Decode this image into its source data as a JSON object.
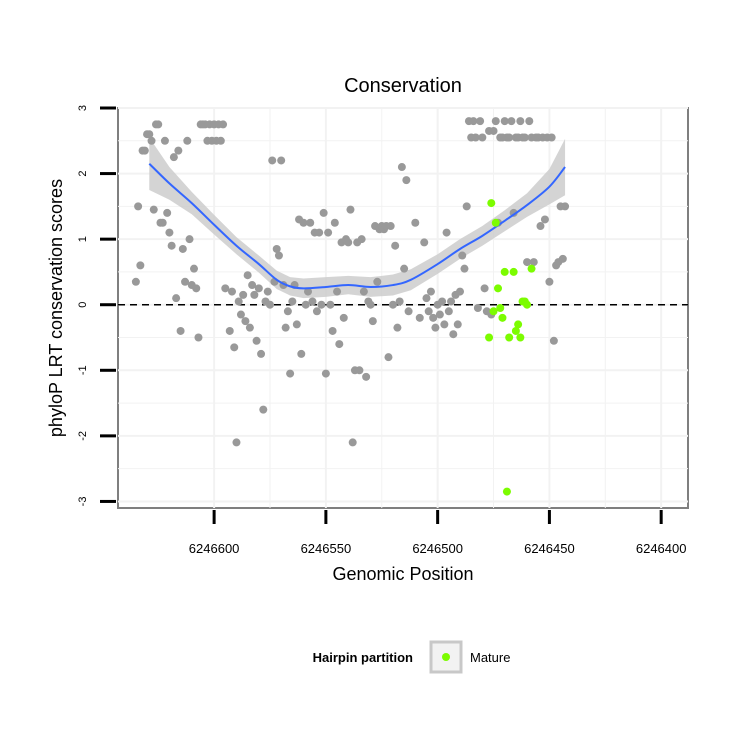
{
  "chart_data": {
    "type": "scatter",
    "title": "Conservation",
    "xlabel": "Genomic Position",
    "ylabel": "phyloP LRT conservation scores",
    "x_reversed": true,
    "xlim": [
      6246643,
      6246388
    ],
    "ylim": [
      -3.1,
      3.0
    ],
    "x_ticks": [
      6246600,
      6246550,
      6246500,
      6246450,
      6246400
    ],
    "x_tick_labels": [
      "6246600",
      "6246550",
      "6246500",
      "6246450",
      "6246400"
    ],
    "y_ticks": [
      -3,
      -2,
      -1,
      0,
      1,
      2,
      3
    ],
    "y_tick_labels": [
      "-3",
      "-2",
      "-1",
      "0",
      "1",
      "2",
      "3"
    ],
    "grid": true,
    "reference_line": {
      "y": 0,
      "style": "dashed"
    },
    "legend": {
      "title": "Hairpin partition",
      "position": "bottom",
      "entries": [
        {
          "label": "Mature",
          "color": "#7cfc00"
        }
      ]
    },
    "colors": {
      "other": "#999999",
      "mature": "#7cfc00",
      "smooth": "#3366ff",
      "band": "#cccccc",
      "panel_border": "#7f7f7f",
      "grid": "#f2f2f2"
    },
    "series": [
      {
        "group": "other",
        "points": [
          [
            6246635,
            0.35
          ],
          [
            6246634,
            1.5
          ],
          [
            6246633,
            0.6
          ],
          [
            6246632,
            2.35
          ],
          [
            6246631,
            2.35
          ],
          [
            6246630,
            2.6
          ],
          [
            6246629,
            2.6
          ],
          [
            6246628,
            2.5
          ],
          [
            6246627,
            1.45
          ],
          [
            6246626,
            2.75
          ],
          [
            6246625,
            2.75
          ],
          [
            6246624,
            1.25
          ],
          [
            6246623,
            1.25
          ],
          [
            6246622,
            2.5
          ],
          [
            6246621,
            1.4
          ],
          [
            6246620,
            1.1
          ],
          [
            6246619,
            0.9
          ],
          [
            6246618,
            2.25
          ],
          [
            6246617,
            0.1
          ],
          [
            6246616,
            2.35
          ],
          [
            6246615,
            -0.4
          ],
          [
            6246614,
            0.85
          ],
          [
            6246613,
            0.35
          ],
          [
            6246612,
            2.5
          ],
          [
            6246611,
            1.0
          ],
          [
            6246610,
            0.3
          ],
          [
            6246609,
            0.55
          ],
          [
            6246608,
            0.25
          ],
          [
            6246607,
            -0.5
          ],
          [
            6246606,
            2.75
          ],
          [
            6246605,
            2.75
          ],
          [
            6246604,
            2.75
          ],
          [
            6246603,
            2.5
          ],
          [
            6246602,
            2.75
          ],
          [
            6246601,
            2.5
          ],
          [
            6246600,
            2.75
          ],
          [
            6246599,
            2.5
          ],
          [
            6246598,
            2.75
          ],
          [
            6246597,
            2.5
          ],
          [
            6246596,
            2.75
          ],
          [
            6246595,
            0.25
          ],
          [
            6246593,
            -0.4
          ],
          [
            6246592,
            0.2
          ],
          [
            6246591,
            -0.65
          ],
          [
            6246590,
            -2.1
          ],
          [
            6246589,
            0.05
          ],
          [
            6246588,
            -0.15
          ],
          [
            6246587,
            0.15
          ],
          [
            6246586,
            -0.25
          ],
          [
            6246585,
            0.45
          ],
          [
            6246584,
            -0.35
          ],
          [
            6246583,
            0.3
          ],
          [
            6246582,
            0.15
          ],
          [
            6246581,
            -0.55
          ],
          [
            6246580,
            0.25
          ],
          [
            6246579,
            -0.75
          ],
          [
            6246578,
            -1.6
          ],
          [
            6246577,
            0.05
          ],
          [
            6246576,
            0.2
          ],
          [
            6246575,
            0.0
          ],
          [
            6246574,
            2.2
          ],
          [
            6246573,
            0.35
          ],
          [
            6246572,
            0.85
          ],
          [
            6246571,
            0.75
          ],
          [
            6246570,
            2.2
          ],
          [
            6246569,
            0.3
          ],
          [
            6246568,
            -0.35
          ],
          [
            6246567,
            -0.1
          ],
          [
            6246566,
            -1.05
          ],
          [
            6246565,
            0.05
          ],
          [
            6246564,
            0.3
          ],
          [
            6246563,
            -0.3
          ],
          [
            6246562,
            1.3
          ],
          [
            6246561,
            -0.75
          ],
          [
            6246560,
            1.25
          ],
          [
            6246559,
            0.0
          ],
          [
            6246558,
            0.2
          ],
          [
            6246557,
            1.25
          ],
          [
            6246556,
            0.05
          ],
          [
            6246555,
            1.1
          ],
          [
            6246554,
            -0.1
          ],
          [
            6246553,
            1.1
          ],
          [
            6246552,
            0.0
          ],
          [
            6246551,
            1.4
          ],
          [
            6246550,
            -1.05
          ],
          [
            6246549,
            1.1
          ],
          [
            6246548,
            0.0
          ],
          [
            6246547,
            -0.4
          ],
          [
            6246546,
            1.25
          ],
          [
            6246545,
            0.2
          ],
          [
            6246544,
            -0.6
          ],
          [
            6246543,
            0.95
          ],
          [
            6246542,
            -0.2
          ],
          [
            6246541,
            1.0
          ],
          [
            6246540,
            0.95
          ],
          [
            6246539,
            1.45
          ],
          [
            6246538,
            -2.1
          ],
          [
            6246537,
            -1.0
          ],
          [
            6246536,
            0.95
          ],
          [
            6246535,
            -1.0
          ],
          [
            6246534,
            1.0
          ],
          [
            6246533,
            0.2
          ],
          [
            6246532,
            -1.1
          ],
          [
            6246531,
            0.05
          ],
          [
            6246530,
            0.0
          ],
          [
            6246529,
            -0.25
          ],
          [
            6246528,
            1.2
          ],
          [
            6246527,
            0.35
          ],
          [
            6246526,
            1.15
          ],
          [
            6246525,
            1.2
          ],
          [
            6246524,
            1.15
          ],
          [
            6246523,
            1.2
          ],
          [
            6246522,
            -0.8
          ],
          [
            6246521,
            1.2
          ],
          [
            6246520,
            0.0
          ],
          [
            6246519,
            0.9
          ],
          [
            6246518,
            -0.35
          ],
          [
            6246517,
            0.05
          ],
          [
            6246516,
            2.1
          ],
          [
            6246515,
            0.55
          ],
          [
            6246514,
            1.9
          ],
          [
            6246513,
            -0.1
          ],
          [
            6246510,
            1.25
          ],
          [
            6246508,
            -0.2
          ],
          [
            6246506,
            0.95
          ],
          [
            6246505,
            0.1
          ],
          [
            6246504,
            -0.1
          ],
          [
            6246503,
            0.2
          ],
          [
            6246502,
            -0.2
          ],
          [
            6246501,
            -0.35
          ],
          [
            6246500,
            0.0
          ],
          [
            6246499,
            -0.15
          ],
          [
            6246498,
            0.05
          ],
          [
            6246497,
            -0.3
          ],
          [
            6246496,
            1.1
          ],
          [
            6246495,
            -0.1
          ],
          [
            6246494,
            0.05
          ],
          [
            6246493,
            -0.45
          ],
          [
            6246492,
            0.15
          ],
          [
            6246491,
            -0.3
          ],
          [
            6246490,
            0.2
          ],
          [
            6246489,
            0.75
          ],
          [
            6246488,
            0.55
          ],
          [
            6246487,
            1.5
          ],
          [
            6246486,
            2.8
          ],
          [
            6246485,
            2.55
          ],
          [
            6246484,
            2.8
          ],
          [
            6246483,
            2.55
          ],
          [
            6246482,
            -0.05
          ],
          [
            6246481,
            2.8
          ],
          [
            6246480,
            2.55
          ],
          [
            6246479,
            0.25
          ],
          [
            6246478,
            -0.1
          ],
          [
            6246477,
            2.65
          ],
          [
            6246476,
            -0.15
          ],
          [
            6246475,
            2.65
          ],
          [
            6246474,
            2.8
          ],
          [
            6246473,
            1.25
          ],
          [
            6246472,
            2.55
          ],
          [
            6246471,
            2.55
          ],
          [
            6246470,
            2.8
          ],
          [
            6246469,
            2.55
          ],
          [
            6246468,
            2.55
          ],
          [
            6246467,
            2.8
          ],
          [
            6246466,
            1.4
          ],
          [
            6246465,
            2.55
          ],
          [
            6246464,
            2.55
          ],
          [
            6246463,
            2.8
          ],
          [
            6246462,
            2.55
          ],
          [
            6246461,
            2.55
          ],
          [
            6246460,
            0.65
          ],
          [
            6246459,
            2.8
          ],
          [
            6246458,
            2.55
          ],
          [
            6246457,
            0.65
          ],
          [
            6246456,
            2.55
          ],
          [
            6246455,
            2.55
          ],
          [
            6246454,
            1.2
          ],
          [
            6246453,
            2.55
          ],
          [
            6246452,
            1.3
          ],
          [
            6246451,
            2.55
          ],
          [
            6246450,
            0.35
          ],
          [
            6246449,
            2.55
          ],
          [
            6246448,
            -0.55
          ],
          [
            6246447,
            0.6
          ],
          [
            6246446,
            0.65
          ],
          [
            6246445,
            1.5
          ],
          [
            6246444,
            0.7
          ],
          [
            6246443,
            1.5
          ]
        ]
      },
      {
        "group": "mature",
        "points": [
          [
            6246476,
            1.55
          ],
          [
            6246474,
            1.25
          ],
          [
            6246473,
            0.25
          ],
          [
            6246472,
            -0.05
          ],
          [
            6246470,
            0.5
          ],
          [
            6246468,
            -0.5
          ],
          [
            6246466,
            0.5
          ],
          [
            6246464,
            -0.3
          ],
          [
            6246462,
            0.05
          ],
          [
            6246460,
            0.0
          ],
          [
            6246458,
            0.55
          ],
          [
            6246477,
            -0.5
          ],
          [
            6246475,
            -0.1
          ],
          [
            6246471,
            -0.2
          ],
          [
            6246469,
            -2.85
          ],
          [
            6246465,
            -0.4
          ],
          [
            6246463,
            -0.5
          ],
          [
            6246461,
            0.05
          ]
        ]
      }
    ],
    "smooth_curve": [
      [
        6246629,
        2.15
      ],
      [
        6246620,
        1.85
      ],
      [
        6246610,
        1.55
      ],
      [
        6246600,
        1.22
      ],
      [
        6246590,
        0.9
      ],
      [
        6246580,
        0.62
      ],
      [
        6246572,
        0.38
      ],
      [
        6246566,
        0.28
      ],
      [
        6246560,
        0.25
      ],
      [
        6246550,
        0.27
      ],
      [
        6246540,
        0.3
      ],
      [
        6246530,
        0.27
      ],
      [
        6246520,
        0.3
      ],
      [
        6246512,
        0.38
      ],
      [
        6246500,
        0.62
      ],
      [
        6246490,
        0.85
      ],
      [
        6246480,
        1.05
      ],
      [
        6246470,
        1.28
      ],
      [
        6246460,
        1.52
      ],
      [
        6246450,
        1.8
      ],
      [
        6246443,
        2.1
      ]
    ],
    "smooth_band": {
      "upper": [
        [
          6246629,
          2.55
        ],
        [
          6246620,
          2.1
        ],
        [
          6246610,
          1.72
        ],
        [
          6246600,
          1.37
        ],
        [
          6246590,
          1.03
        ],
        [
          6246580,
          0.75
        ],
        [
          6246572,
          0.52
        ],
        [
          6246566,
          0.42
        ],
        [
          6246560,
          0.4
        ],
        [
          6246550,
          0.42
        ],
        [
          6246540,
          0.44
        ],
        [
          6246530,
          0.42
        ],
        [
          6246520,
          0.46
        ],
        [
          6246512,
          0.54
        ],
        [
          6246500,
          0.77
        ],
        [
          6246490,
          1.0
        ],
        [
          6246480,
          1.2
        ],
        [
          6246470,
          1.44
        ],
        [
          6246460,
          1.7
        ],
        [
          6246450,
          2.07
        ],
        [
          6246443,
          2.53
        ]
      ],
      "lower": [
        [
          6246629,
          1.75
        ],
        [
          6246620,
          1.6
        ],
        [
          6246610,
          1.38
        ],
        [
          6246600,
          1.07
        ],
        [
          6246590,
          0.77
        ],
        [
          6246580,
          0.49
        ],
        [
          6246572,
          0.24
        ],
        [
          6246566,
          0.14
        ],
        [
          6246560,
          0.1
        ],
        [
          6246550,
          0.12
        ],
        [
          6246540,
          0.16
        ],
        [
          6246530,
          0.12
        ],
        [
          6246520,
          0.14
        ],
        [
          6246512,
          0.22
        ],
        [
          6246500,
          0.47
        ],
        [
          6246490,
          0.7
        ],
        [
          6246480,
          0.9
        ],
        [
          6246470,
          1.12
        ],
        [
          6246460,
          1.34
        ],
        [
          6246450,
          1.53
        ],
        [
          6246443,
          1.67
        ]
      ]
    }
  }
}
